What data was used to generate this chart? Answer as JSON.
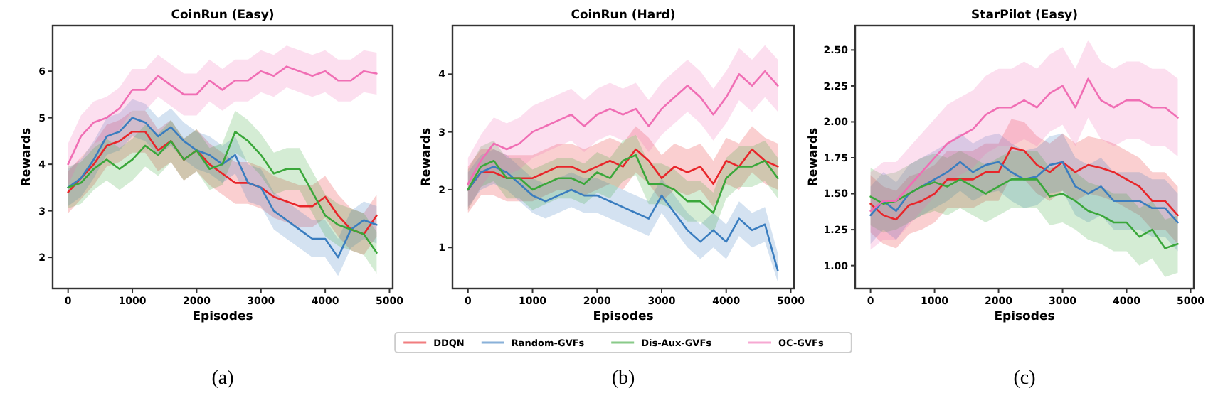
{
  "chart_data": [
    {
      "type": "line",
      "title": "CoinRun (Easy)",
      "xlabel": "Episodes",
      "ylabel": "Rewards",
      "annotations": [
        "(a)"
      ],
      "legend": false,
      "grid": false,
      "x": [
        0,
        200,
        400,
        600,
        800,
        1000,
        1200,
        1400,
        1600,
        1800,
        2000,
        2200,
        2400,
        2600,
        2800,
        3000,
        3200,
        3400,
        3600,
        3800,
        4000,
        4200,
        4400,
        4600,
        4800
      ],
      "xlim": [
        -240,
        5050
      ],
      "xticks": [
        0,
        1000,
        2000,
        3000,
        4000,
        5000
      ],
      "ylim": [
        1.33,
        6.98
      ],
      "yticks": [
        2,
        3,
        4,
        5,
        6
      ],
      "series": [
        {
          "color": "#e8262a",
          "values": [
            3.4,
            3.7,
            4.0,
            4.4,
            4.5,
            4.7,
            4.7,
            4.3,
            4.5,
            4.1,
            4.3,
            4.0,
            3.8,
            3.6,
            3.6,
            3.5,
            3.3,
            3.2,
            3.1,
            3.1,
            3.3,
            2.9,
            2.6,
            2.5,
            2.9
          ],
          "lower": [
            2.95,
            3.25,
            3.55,
            3.95,
            4.05,
            4.25,
            4.25,
            3.85,
            4.05,
            3.65,
            3.85,
            3.55,
            3.35,
            3.15,
            3.15,
            3.05,
            2.85,
            2.75,
            2.65,
            2.65,
            2.85,
            2.45,
            2.15,
            2.05,
            2.45
          ],
          "upper": [
            3.85,
            4.15,
            4.45,
            4.85,
            4.95,
            5.15,
            5.15,
            4.75,
            4.95,
            4.55,
            4.75,
            4.45,
            4.25,
            4.05,
            4.05,
            3.95,
            3.75,
            3.65,
            3.55,
            3.55,
            3.75,
            3.35,
            3.05,
            2.95,
            3.35
          ]
        },
        {
          "color": "#3a7dbf",
          "values": [
            3.5,
            3.7,
            4.1,
            4.6,
            4.7,
            5.0,
            4.9,
            4.6,
            4.8,
            4.5,
            4.3,
            4.2,
            4.0,
            4.2,
            3.6,
            3.5,
            3.0,
            2.8,
            2.6,
            2.4,
            2.4,
            2.0,
            2.6,
            2.8,
            2.7
          ],
          "lower": [
            3.1,
            3.3,
            3.7,
            4.2,
            4.3,
            4.6,
            4.5,
            4.2,
            4.4,
            4.1,
            3.9,
            3.8,
            3.6,
            3.8,
            3.2,
            3.1,
            2.6,
            2.4,
            2.2,
            2.0,
            2.0,
            1.6,
            2.2,
            2.4,
            2.3
          ],
          "upper": [
            3.9,
            4.1,
            4.5,
            5.0,
            5.1,
            5.4,
            5.3,
            5.0,
            5.2,
            4.9,
            4.7,
            4.6,
            4.4,
            4.6,
            4.0,
            3.9,
            3.4,
            3.2,
            3.0,
            2.8,
            2.8,
            2.4,
            3.0,
            3.2,
            3.1
          ]
        },
        {
          "color": "#3aa73a",
          "values": [
            3.5,
            3.6,
            3.9,
            4.1,
            3.9,
            4.1,
            4.4,
            4.2,
            4.5,
            4.1,
            4.3,
            3.9,
            4.0,
            4.7,
            4.5,
            4.2,
            3.8,
            3.9,
            3.9,
            3.4,
            2.9,
            2.7,
            2.6,
            2.5,
            2.1
          ],
          "lower": [
            3.05,
            3.15,
            3.45,
            3.65,
            3.45,
            3.65,
            3.95,
            3.75,
            4.05,
            3.65,
            3.85,
            3.45,
            3.55,
            4.25,
            4.05,
            3.75,
            3.35,
            3.45,
            3.45,
            2.95,
            2.45,
            2.25,
            2.15,
            2.05,
            1.65
          ],
          "upper": [
            3.95,
            4.05,
            4.35,
            4.55,
            4.35,
            4.55,
            4.85,
            4.65,
            4.95,
            4.55,
            4.75,
            4.35,
            4.45,
            5.15,
            4.95,
            4.65,
            4.25,
            4.35,
            4.35,
            3.85,
            3.35,
            3.15,
            3.05,
            2.95,
            2.55
          ]
        },
        {
          "color": "#f06eb4",
          "values": [
            4.0,
            4.6,
            4.9,
            5.0,
            5.2,
            5.6,
            5.6,
            5.9,
            5.7,
            5.5,
            5.5,
            5.8,
            5.6,
            5.8,
            5.8,
            6.0,
            5.9,
            6.1,
            6.0,
            5.9,
            6.0,
            5.8,
            5.8,
            6.0,
            5.95
          ],
          "lower": [
            3.55,
            4.15,
            4.45,
            4.55,
            4.75,
            5.15,
            5.15,
            5.45,
            5.25,
            5.05,
            5.05,
            5.35,
            5.15,
            5.35,
            5.35,
            5.55,
            5.45,
            5.65,
            5.55,
            5.45,
            5.55,
            5.35,
            5.35,
            5.55,
            5.5
          ],
          "upper": [
            4.45,
            5.05,
            5.35,
            5.45,
            5.65,
            6.05,
            6.05,
            6.35,
            6.15,
            5.95,
            5.95,
            6.25,
            6.05,
            6.25,
            6.25,
            6.45,
            6.35,
            6.55,
            6.45,
            6.35,
            6.45,
            6.25,
            6.25,
            6.45,
            6.4
          ]
        }
      ]
    },
    {
      "type": "line",
      "title": "CoinRun (Hard)",
      "xlabel": "Episodes",
      "ylabel": "Rewards",
      "annotations": [
        "(b)"
      ],
      "legend": "bottom",
      "grid": false,
      "x": [
        0,
        200,
        400,
        600,
        800,
        1000,
        1200,
        1400,
        1600,
        1800,
        2000,
        2200,
        2400,
        2600,
        2800,
        3000,
        3200,
        3400,
        3600,
        3800,
        4000,
        4200,
        4400,
        4600,
        4800
      ],
      "xlim": [
        -240,
        5050
      ],
      "xticks": [
        0,
        1000,
        2000,
        3000,
        4000,
        5000
      ],
      "ylim": [
        0.29,
        4.84
      ],
      "yticks": [
        1,
        2,
        3,
        4
      ],
      "series": [
        {
          "name": "DDQN",
          "color": "#e8262a",
          "values": [
            2.0,
            2.3,
            2.3,
            2.2,
            2.2,
            2.2,
            2.3,
            2.4,
            2.4,
            2.3,
            2.4,
            2.5,
            2.4,
            2.7,
            2.5,
            2.2,
            2.4,
            2.3,
            2.4,
            2.1,
            2.5,
            2.4,
            2.7,
            2.5,
            2.4
          ],
          "lower": [
            1.6,
            1.9,
            1.9,
            1.8,
            1.8,
            1.8,
            1.9,
            2.0,
            2.0,
            1.9,
            2.0,
            2.1,
            2.0,
            2.3,
            2.1,
            1.8,
            2.0,
            1.9,
            2.0,
            1.7,
            2.1,
            2.0,
            2.3,
            2.1,
            2.0
          ],
          "upper": [
            2.4,
            2.7,
            2.7,
            2.6,
            2.6,
            2.6,
            2.7,
            2.8,
            2.8,
            2.7,
            2.8,
            2.9,
            2.8,
            3.1,
            2.9,
            2.6,
            2.8,
            2.7,
            2.8,
            2.5,
            2.9,
            2.8,
            3.1,
            2.9,
            2.8
          ]
        },
        {
          "name": "Random-GVFs",
          "color": "#3a7dbf",
          "values": [
            2.0,
            2.3,
            2.4,
            2.3,
            2.1,
            1.9,
            1.8,
            1.9,
            2.0,
            1.9,
            1.9,
            1.8,
            1.7,
            1.6,
            1.5,
            1.9,
            1.6,
            1.3,
            1.1,
            1.3,
            1.1,
            1.5,
            1.3,
            1.4,
            0.6
          ],
          "lower": [
            1.7,
            2.0,
            2.1,
            2.0,
            1.8,
            1.6,
            1.5,
            1.6,
            1.7,
            1.6,
            1.6,
            1.5,
            1.4,
            1.3,
            1.2,
            1.6,
            1.3,
            1.0,
            0.8,
            1.0,
            0.8,
            1.2,
            1.0,
            1.1,
            0.4
          ],
          "upper": [
            2.3,
            2.6,
            2.7,
            2.6,
            2.4,
            2.2,
            2.1,
            2.2,
            2.3,
            2.2,
            2.2,
            2.1,
            2.0,
            1.9,
            1.8,
            2.2,
            1.9,
            1.6,
            1.4,
            1.6,
            1.4,
            1.8,
            1.6,
            1.7,
            0.9
          ]
        },
        {
          "name": "Dis-Aux-GVFs",
          "color": "#3aa73a",
          "values": [
            2.0,
            2.4,
            2.5,
            2.2,
            2.2,
            2.0,
            2.1,
            2.2,
            2.2,
            2.1,
            2.3,
            2.2,
            2.5,
            2.6,
            2.1,
            2.1,
            2.0,
            1.8,
            1.8,
            1.6,
            2.2,
            2.4,
            2.4,
            2.5,
            2.2
          ],
          "lower": [
            1.65,
            2.05,
            2.15,
            1.85,
            1.85,
            1.65,
            1.75,
            1.85,
            1.85,
            1.75,
            1.95,
            1.85,
            2.15,
            2.25,
            1.75,
            1.75,
            1.65,
            1.45,
            1.45,
            1.25,
            1.85,
            2.05,
            2.05,
            2.15,
            1.85
          ],
          "upper": [
            2.35,
            2.75,
            2.85,
            2.55,
            2.55,
            2.35,
            2.45,
            2.55,
            2.55,
            2.45,
            2.65,
            2.55,
            2.85,
            2.95,
            2.45,
            2.45,
            2.35,
            2.15,
            2.15,
            1.95,
            2.55,
            2.75,
            2.75,
            2.85,
            2.55
          ]
        },
        {
          "name": "OC-GVFs",
          "color": "#f06eb4",
          "values": [
            2.1,
            2.5,
            2.8,
            2.7,
            2.8,
            3.0,
            3.1,
            3.2,
            3.3,
            3.1,
            3.3,
            3.4,
            3.3,
            3.4,
            3.1,
            3.4,
            3.6,
            3.8,
            3.6,
            3.3,
            3.6,
            4.0,
            3.8,
            4.05,
            3.8
          ],
          "lower": [
            1.65,
            2.05,
            2.35,
            2.25,
            2.35,
            2.55,
            2.65,
            2.75,
            2.85,
            2.65,
            2.85,
            2.95,
            2.85,
            2.95,
            2.65,
            2.95,
            3.15,
            3.35,
            3.15,
            2.85,
            3.15,
            3.55,
            3.35,
            3.6,
            3.35
          ],
          "upper": [
            2.55,
            2.95,
            3.25,
            3.15,
            3.25,
            3.45,
            3.55,
            3.65,
            3.75,
            3.55,
            3.75,
            3.85,
            3.75,
            3.85,
            3.55,
            3.85,
            4.05,
            4.25,
            4.05,
            3.75,
            4.05,
            4.45,
            4.25,
            4.5,
            4.25
          ]
        }
      ]
    },
    {
      "type": "line",
      "title": "StarPilot (Easy)",
      "xlabel": "Episodes",
      "ylabel": "Rewards",
      "annotations": [
        "(c)"
      ],
      "legend": false,
      "grid": false,
      "x": [
        0,
        200,
        400,
        600,
        800,
        1000,
        1200,
        1400,
        1600,
        1800,
        2000,
        2200,
        2400,
        2600,
        2800,
        3000,
        3200,
        3400,
        3600,
        3800,
        4000,
        4200,
        4400,
        4600,
        4800
      ],
      "xlim": [
        -240,
        5050
      ],
      "xticks": [
        0,
        1000,
        2000,
        3000,
        4000,
        5000
      ],
      "ylim": [
        0.84,
        2.67
      ],
      "yticks": [
        {
          "value": 1.0,
          "label": "1.00"
        },
        {
          "value": 1.25,
          "label": "1.25"
        },
        {
          "value": 1.5,
          "label": "1.50"
        },
        {
          "value": 1.75,
          "label": "1.75"
        },
        {
          "value": 2.0,
          "label": "2.00"
        },
        {
          "value": 2.25,
          "label": "2.25"
        },
        {
          "value": 2.5,
          "label": "2.50"
        }
      ],
      "series": [
        {
          "color": "#e8262a",
          "values": [
            1.43,
            1.35,
            1.32,
            1.42,
            1.45,
            1.5,
            1.6,
            1.6,
            1.6,
            1.65,
            1.65,
            1.82,
            1.8,
            1.7,
            1.65,
            1.72,
            1.65,
            1.7,
            1.68,
            1.65,
            1.6,
            1.55,
            1.45,
            1.45,
            1.35
          ],
          "lower": [
            1.23,
            1.15,
            1.12,
            1.22,
            1.25,
            1.3,
            1.4,
            1.4,
            1.4,
            1.45,
            1.45,
            1.62,
            1.6,
            1.5,
            1.45,
            1.52,
            1.45,
            1.5,
            1.48,
            1.45,
            1.4,
            1.35,
            1.25,
            1.25,
            1.15
          ],
          "upper": [
            1.63,
            1.55,
            1.52,
            1.62,
            1.65,
            1.7,
            1.8,
            1.8,
            1.8,
            1.85,
            1.85,
            2.02,
            2.0,
            1.9,
            1.85,
            1.92,
            1.85,
            1.9,
            1.88,
            1.85,
            1.8,
            1.75,
            1.65,
            1.65,
            1.55
          ]
        },
        {
          "color": "#3a7dbf",
          "values": [
            1.35,
            1.45,
            1.38,
            1.5,
            1.55,
            1.6,
            1.65,
            1.72,
            1.65,
            1.7,
            1.72,
            1.65,
            1.6,
            1.62,
            1.7,
            1.72,
            1.55,
            1.5,
            1.55,
            1.45,
            1.45,
            1.45,
            1.4,
            1.4,
            1.3
          ],
          "lower": [
            1.15,
            1.25,
            1.18,
            1.3,
            1.35,
            1.4,
            1.45,
            1.52,
            1.45,
            1.5,
            1.52,
            1.45,
            1.4,
            1.42,
            1.5,
            1.52,
            1.35,
            1.3,
            1.35,
            1.25,
            1.25,
            1.25,
            1.2,
            1.2,
            1.1
          ],
          "upper": [
            1.55,
            1.65,
            1.58,
            1.7,
            1.75,
            1.8,
            1.85,
            1.92,
            1.85,
            1.9,
            1.92,
            1.85,
            1.8,
            1.82,
            1.9,
            1.92,
            1.75,
            1.7,
            1.75,
            1.65,
            1.65,
            1.65,
            1.6,
            1.6,
            1.5
          ]
        },
        {
          "color": "#3aa73a",
          "values": [
            1.48,
            1.43,
            1.45,
            1.5,
            1.55,
            1.58,
            1.55,
            1.6,
            1.55,
            1.5,
            1.55,
            1.6,
            1.6,
            1.6,
            1.48,
            1.5,
            1.45,
            1.38,
            1.35,
            1.3,
            1.3,
            1.2,
            1.25,
            1.12,
            1.15
          ],
          "lower": [
            1.28,
            1.23,
            1.25,
            1.3,
            1.35,
            1.38,
            1.35,
            1.4,
            1.35,
            1.3,
            1.35,
            1.4,
            1.4,
            1.4,
            1.28,
            1.3,
            1.25,
            1.18,
            1.15,
            1.1,
            1.1,
            1.0,
            1.05,
            0.92,
            0.95
          ],
          "upper": [
            1.68,
            1.63,
            1.65,
            1.7,
            1.75,
            1.78,
            1.75,
            1.8,
            1.75,
            1.7,
            1.75,
            1.8,
            1.8,
            1.8,
            1.68,
            1.7,
            1.65,
            1.58,
            1.55,
            1.5,
            1.5,
            1.4,
            1.45,
            1.32,
            1.35
          ]
        },
        {
          "color": "#f06eb4",
          "values": [
            1.38,
            1.45,
            1.45,
            1.55,
            1.65,
            1.75,
            1.85,
            1.9,
            1.95,
            2.05,
            2.1,
            2.1,
            2.15,
            2.1,
            2.2,
            2.25,
            2.1,
            2.3,
            2.15,
            2.1,
            2.15,
            2.15,
            2.1,
            2.1,
            2.03
          ],
          "lower": [
            1.11,
            1.18,
            1.18,
            1.28,
            1.38,
            1.48,
            1.58,
            1.63,
            1.68,
            1.78,
            1.83,
            1.83,
            1.88,
            1.83,
            1.93,
            1.98,
            1.83,
            2.03,
            1.88,
            1.83,
            1.88,
            1.88,
            1.83,
            1.83,
            1.76
          ],
          "upper": [
            1.65,
            1.72,
            1.72,
            1.82,
            1.92,
            2.02,
            2.12,
            2.17,
            2.22,
            2.32,
            2.37,
            2.37,
            2.42,
            2.37,
            2.47,
            2.52,
            2.37,
            2.57,
            2.42,
            2.37,
            2.42,
            2.42,
            2.37,
            2.37,
            2.3
          ]
        }
      ]
    }
  ]
}
